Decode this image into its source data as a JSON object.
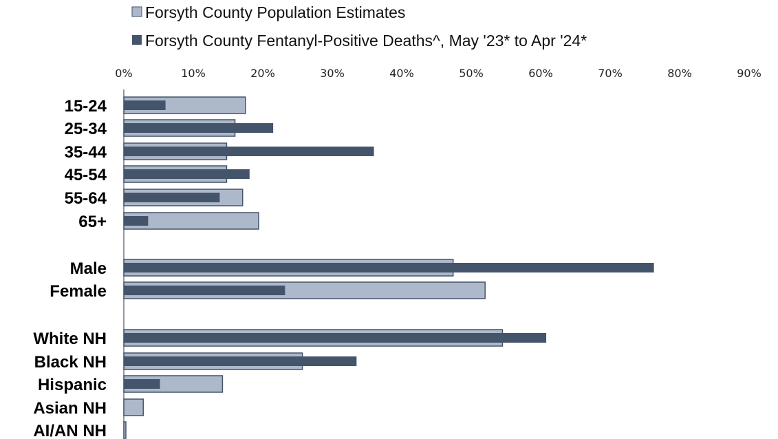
{
  "chart_data": {
    "type": "bar",
    "orientation": "horizontal",
    "categories": [
      "15-24",
      "25-34",
      "35-44",
      "45-54",
      "55-64",
      "65+",
      "Male",
      "Female",
      "White NH",
      "Black NH",
      "Hispanic",
      "Asian NH",
      "AI/AN NH"
    ],
    "series": [
      {
        "name": "Forsyth County Population Estimates",
        "color": "#adb9ca",
        "values": [
          17.5,
          16,
          14.8,
          14.8,
          17.1,
          19.4,
          47.4,
          52,
          54.5,
          25.7,
          14.2,
          2.8,
          0.3
        ]
      },
      {
        "name": "Forsyth County Fentanyl-Positive Deaths^, May '23* to Apr '24*",
        "color": "#44546a",
        "values": [
          6,
          21.5,
          36,
          18.1,
          13.8,
          3.5,
          76.3,
          23.2,
          60.8,
          33.5,
          5.2,
          0,
          0
        ]
      }
    ],
    "xlim": [
      0,
      90
    ],
    "xticks": [
      "0%",
      "10%",
      "20%",
      "30%",
      "40%",
      "50%",
      "60%",
      "70%",
      "80%",
      "90%"
    ],
    "xaxis_position": "top",
    "legend_position": "top",
    "grid": false
  }
}
